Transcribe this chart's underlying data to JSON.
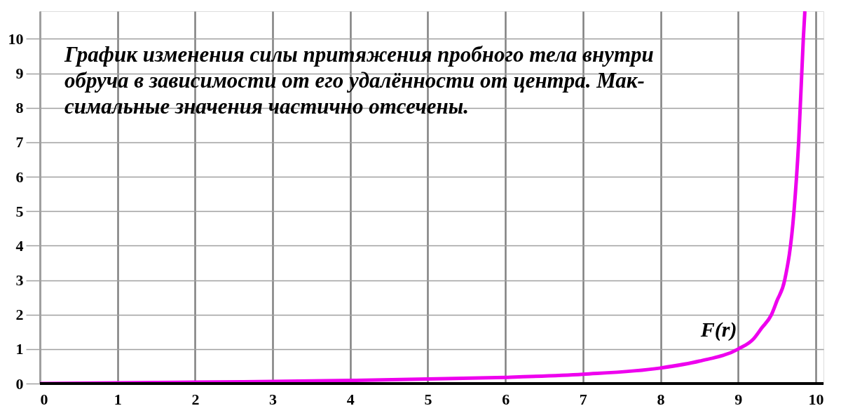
{
  "chart_data": {
    "type": "line",
    "annotations": [
      "График изменения силы притяжения пробного тела внутри\nобруча в зависимости от его удалённости от центра. Мак-\nсимальные значения частично отсечены."
    ],
    "x": [
      0,
      1,
      2,
      3,
      4,
      5,
      6,
      7,
      8,
      8.5,
      9,
      9.2,
      9.3,
      9.43,
      9.5,
      9.6,
      9.72,
      9.78,
      9.84,
      9.86
    ],
    "series": [
      {
        "name": "F(r)",
        "color": "#ee00ee",
        "values": [
          0,
          0.02,
          0.04,
          0.06,
          0.09,
          0.13,
          0.18,
          0.27,
          0.45,
          0.65,
          1.0,
          1.3,
          1.6,
          2,
          2.4,
          3,
          5,
          7,
          10,
          10.8
        ]
      }
    ],
    "xlim": [
      0,
      10.1
    ],
    "ylim": [
      0,
      10.8
    ],
    "xticks": [
      0,
      1,
      2,
      3,
      4,
      5,
      6,
      7,
      8,
      9,
      10
    ],
    "yticks": [
      0,
      1,
      2,
      3,
      4,
      5,
      6,
      7,
      8,
      9,
      10
    ],
    "grid": true,
    "marker": "none",
    "line_style": "solid"
  }
}
